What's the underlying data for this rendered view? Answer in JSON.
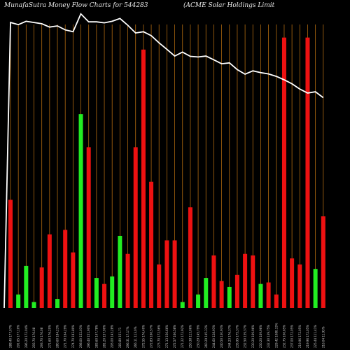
{
  "header": {
    "title": "MunafaSutra  Money Flow  Charts for 544283",
    "company": "(ACME Solar Holdings Limit"
  },
  "colors": {
    "background": "#000000",
    "up": "#22ee22",
    "down": "#ee1111",
    "price_line": "#ffffff",
    "gridline": "#b06a10"
  },
  "chart_data": {
    "type": "bar",
    "series": [
      {
        "values": [
          0.72,
          0.09,
          0.28,
          0.04,
          0.27,
          0.49,
          0.06,
          0.52,
          0.37,
          1.29,
          1.07,
          0.2,
          0.16,
          0.21,
          0.48,
          0.36,
          1.07,
          1.72,
          0.84,
          0.29,
          0.45,
          0.45,
          0.04,
          0.67,
          0.09,
          0.2,
          0.35,
          0.18,
          0.14,
          0.22,
          0.36,
          0.35,
          0.16,
          0.17,
          0.09,
          1.8,
          0.33,
          0.29,
          1.8,
          0.26,
          0.61
        ],
        "directions": [
          "down",
          "up",
          "up",
          "up",
          "down",
          "down",
          "up",
          "down",
          "down",
          "up",
          "down",
          "up",
          "down",
          "up",
          "up",
          "down",
          "down",
          "down",
          "down",
          "down",
          "down",
          "down",
          "up",
          "down",
          "up",
          "up",
          "down",
          "down",
          "up",
          "down",
          "down",
          "down",
          "up",
          "down",
          "down",
          "down",
          "down",
          "down",
          "down",
          "up",
          "down"
        ]
      },
      {
        "values": [
          0.927,
          0.92,
          0.931,
          0.927,
          0.923,
          0.912,
          0.916,
          0.903,
          0.897,
          0.955,
          0.929,
          0.929,
          0.926,
          0.931,
          0.94,
          0.918,
          0.893,
          0.897,
          0.884,
          0.861,
          0.84,
          0.818,
          0.831,
          0.817,
          0.815,
          0.818,
          0.806,
          0.793,
          0.796,
          0.774,
          0.759,
          0.77,
          0.764,
          0.76,
          0.752,
          0.741,
          0.728,
          0.711,
          0.698,
          0.702,
          0.683
        ]
      }
    ],
    "ylim": [
      0,
      2.05
    ],
    "grid": true
  },
  "x_labels": [
    "288.40 177.07%",
    "291.65 177.10%",
    "296.20 172.04%",
    "293.70 176.08",
    "293.70 176.08",
    "271.60 176.20%",
    "280.60 184.23%",
    "271.70 164.29%",
    "274.70 193.80%",
    "298.00 152.03%",
    "296.40 151.90%",
    "283.60 147.78%",
    "281.20 157.90%",
    "293.00 143.28%",
    "283.80 151.71",
    "296.31 17.17%",
    "266.11 113.0%",
    "272.55 176.40%",
    "272.83 166.57%",
    "273.70 172.56%",
    "271.13 156.66%",
    "272.57 166.58%",
    "271.22 172.92%",
    "250.38 113.06%",
    "230.29 145.79%",
    "260.29 145.33%",
    "244.60 128.93%",
    "240.50 130.93%",
    "244.23 176.37%",
    "235.95 175.37%",
    "232.50 139.37%",
    "230.20 169.96%",
    "230.20 169.96%",
    "232.30 139.75%",
    "229.42 1080.33%",
    "232.75 106.65%",
    "237.00 172.05%",
    "219.96 172.05%",
    "219.96 172.05%",
    "225.44 111.41%",
    "216.04 11.93%"
  ]
}
